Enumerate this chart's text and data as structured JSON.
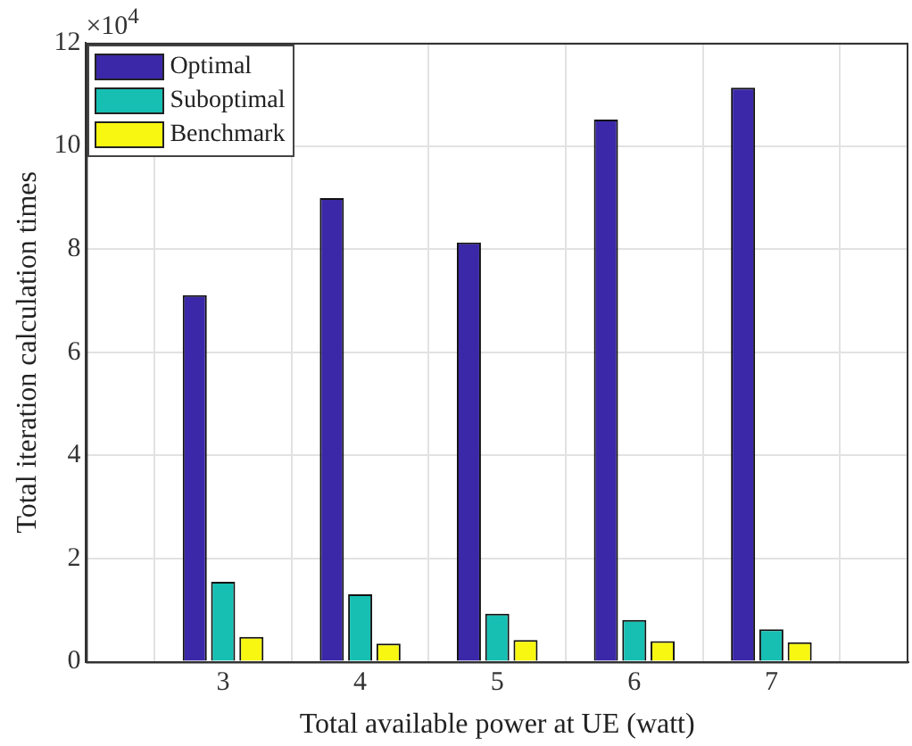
{
  "chart_data": {
    "type": "bar",
    "xlabel": "Total available power at UE (watt)",
    "ylabel": "Total iteration calculation times",
    "annotations": [
      "×10$^{4}$"
    ],
    "x": [
      3,
      4,
      5,
      6,
      7
    ],
    "xlim": [
      2,
      8
    ],
    "xticks": [
      3,
      4,
      5,
      6,
      7
    ],
    "ylim": [
      0,
      12
    ],
    "yticks": [
      0,
      2,
      4,
      6,
      8,
      10,
      12
    ],
    "grid": true,
    "legend": "top left",
    "series": [
      {
        "name": "Optimal",
        "color": "#3b28a8",
        "values": [
          7.11,
          8.99,
          8.13,
          10.51,
          11.13
        ]
      },
      {
        "name": "Suboptimal",
        "color": "#17bfb3",
        "values": [
          1.55,
          1.31,
          0.93,
          0.81,
          0.63
        ]
      },
      {
        "name": "Benchmark",
        "color": "#f7f711",
        "values": [
          0.48,
          0.35,
          0.42,
          0.4,
          0.38
        ]
      }
    ]
  }
}
